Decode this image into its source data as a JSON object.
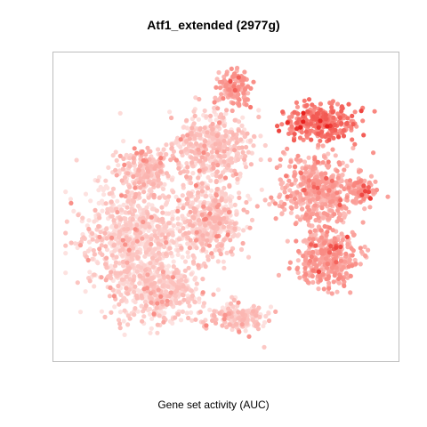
{
  "chart_data": {
    "type": "scatter",
    "title": "Atf1_extended (2977g)",
    "xlabel": "Gene set activity (AUC)",
    "ylabel": "",
    "axes_visible": false,
    "grid": false,
    "legend": "none",
    "color_scale": [
      "#fde2e0",
      "#fbb0ab",
      "#f87c74",
      "#e8201d"
    ],
    "clusters": [
      {
        "name": "left-mass",
        "cx": 0.22,
        "cy": 0.62,
        "sx": 0.13,
        "sy": 0.18,
        "n": 900,
        "level": 0.08
      },
      {
        "name": "bottom-left",
        "cx": 0.3,
        "cy": 0.8,
        "sx": 0.1,
        "sy": 0.08,
        "n": 350,
        "level": 0.1
      },
      {
        "name": "upper-center",
        "cx": 0.45,
        "cy": 0.3,
        "sx": 0.1,
        "sy": 0.1,
        "n": 450,
        "level": 0.14
      },
      {
        "name": "center",
        "cx": 0.45,
        "cy": 0.55,
        "sx": 0.08,
        "sy": 0.1,
        "n": 400,
        "level": 0.15
      },
      {
        "name": "bottom-center",
        "cx": 0.53,
        "cy": 0.88,
        "sx": 0.07,
        "sy": 0.04,
        "n": 200,
        "level": 0.15
      },
      {
        "name": "top-spike",
        "cx": 0.52,
        "cy": 0.1,
        "sx": 0.04,
        "sy": 0.05,
        "n": 130,
        "level": 0.4
      },
      {
        "name": "upper-right-hot",
        "cx": 0.78,
        "cy": 0.22,
        "sx": 0.09,
        "sy": 0.05,
        "n": 300,
        "level": 0.62
      },
      {
        "name": "right-middle",
        "cx": 0.77,
        "cy": 0.45,
        "sx": 0.1,
        "sy": 0.1,
        "n": 450,
        "level": 0.35
      },
      {
        "name": "lower-right",
        "cx": 0.8,
        "cy": 0.68,
        "sx": 0.08,
        "sy": 0.08,
        "n": 350,
        "level": 0.4
      },
      {
        "name": "right-arm",
        "cx": 0.9,
        "cy": 0.45,
        "sx": 0.04,
        "sy": 0.04,
        "n": 80,
        "level": 0.45
      },
      {
        "name": "left-upper-strip",
        "cx": 0.25,
        "cy": 0.38,
        "sx": 0.07,
        "sy": 0.06,
        "n": 200,
        "level": 0.18
      }
    ]
  }
}
